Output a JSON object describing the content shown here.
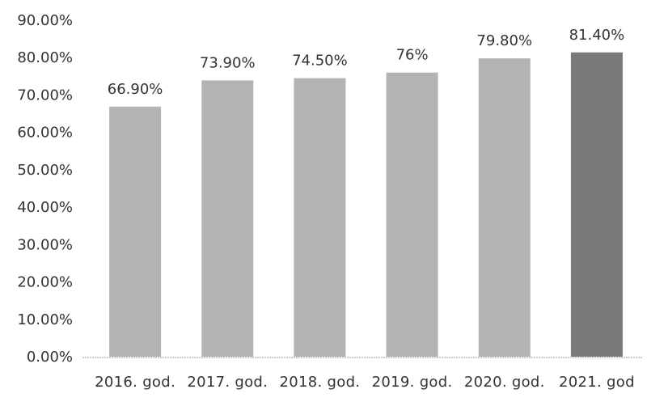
{
  "chart_data": {
    "type": "bar",
    "categories": [
      "2016. god.",
      "2017. god.",
      "2018. god.",
      "2019. god.",
      "2020. god.",
      "2021. god"
    ],
    "values": [
      66.9,
      73.9,
      74.5,
      76,
      79.8,
      81.4
    ],
    "data_labels": [
      "66.90%",
      "73.90%",
      "74.50%",
      "76%",
      "79.80%",
      "81.40%"
    ],
    "y_tick_labels": [
      "0.00%",
      "10.00%",
      "20.00%",
      "30.00%",
      "40.00%",
      "50.00%",
      "60.00%",
      "70.00%",
      "80.00%",
      "90.00%"
    ],
    "ylim": [
      0,
      90
    ],
    "title": "",
    "xlabel": "",
    "ylabel": "",
    "grid": false,
    "legend": "none",
    "colors": {
      "bar": "#b3b3b3",
      "highlight_bar": "#7a7a7a",
      "axis": "#9a9a9a",
      "text": "#333333"
    },
    "highlight_index": 5
  }
}
